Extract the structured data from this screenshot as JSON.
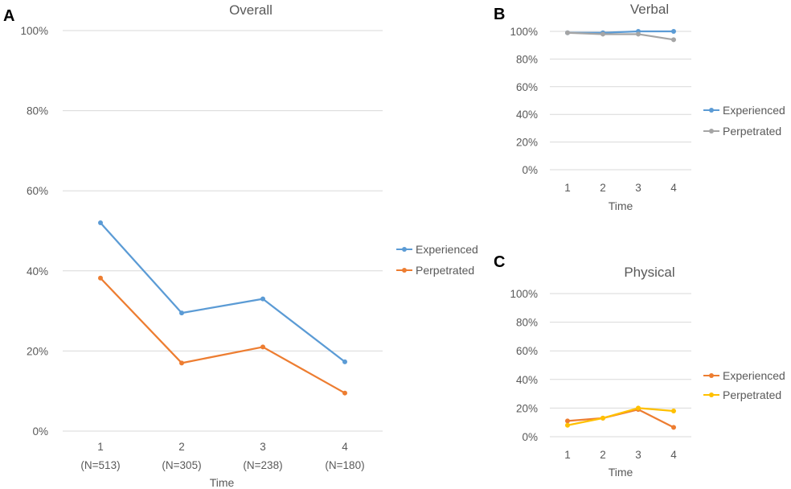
{
  "chart_data": [
    {
      "panel": "A",
      "type": "line",
      "title": "Overall",
      "xlabel": "Time",
      "ylabel": "",
      "categories": [
        "1",
        "2",
        "3",
        "4"
      ],
      "category_sublabels": [
        "(N=513)",
        "(N=305)",
        "(N=238)",
        "(N=180)"
      ],
      "ylim": [
        0,
        100
      ],
      "yticks": [
        "0%",
        "20%",
        "40%",
        "60%",
        "80%",
        "100%"
      ],
      "grid": true,
      "legend_position": "right",
      "series": [
        {
          "name": "Experienced",
          "values": [
            52,
            29.5,
            33,
            17.3
          ],
          "color": "#5b9bd5"
        },
        {
          "name": "Perpetrated",
          "values": [
            38.2,
            17,
            21,
            9.5
          ],
          "color": "#ed7d31"
        }
      ]
    },
    {
      "panel": "B",
      "type": "line",
      "title": "Verbal",
      "xlabel": "Time",
      "ylabel": "",
      "categories": [
        "1",
        "2",
        "3",
        "4"
      ],
      "category_sublabels": [],
      "ylim": [
        0,
        100
      ],
      "yticks": [
        "0%",
        "20%",
        "40%",
        "60%",
        "80%",
        "100%"
      ],
      "grid": true,
      "legend_position": "right",
      "series": [
        {
          "name": "Experienced",
          "values": [
            99,
            99,
            100,
            100
          ],
          "color": "#5b9bd5"
        },
        {
          "name": "Perpetrated",
          "values": [
            99,
            98,
            98,
            94
          ],
          "color": "#a5a5a5"
        }
      ]
    },
    {
      "panel": "C",
      "type": "line",
      "title": "Physical",
      "xlabel": "Time",
      "ylabel": "",
      "categories": [
        "1",
        "2",
        "3",
        "4"
      ],
      "category_sublabels": [],
      "ylim": [
        0,
        100
      ],
      "yticks": [
        "0%",
        "20%",
        "40%",
        "60%",
        "80%",
        "100%"
      ],
      "grid": true,
      "legend_position": "right",
      "series": [
        {
          "name": "Experienced",
          "values": [
            11,
            13,
            19,
            6.5
          ],
          "color": "#ed7d31"
        },
        {
          "name": "Perpetrated",
          "values": [
            8,
            13,
            20,
            18
          ],
          "color": "#ffc000"
        }
      ]
    }
  ]
}
